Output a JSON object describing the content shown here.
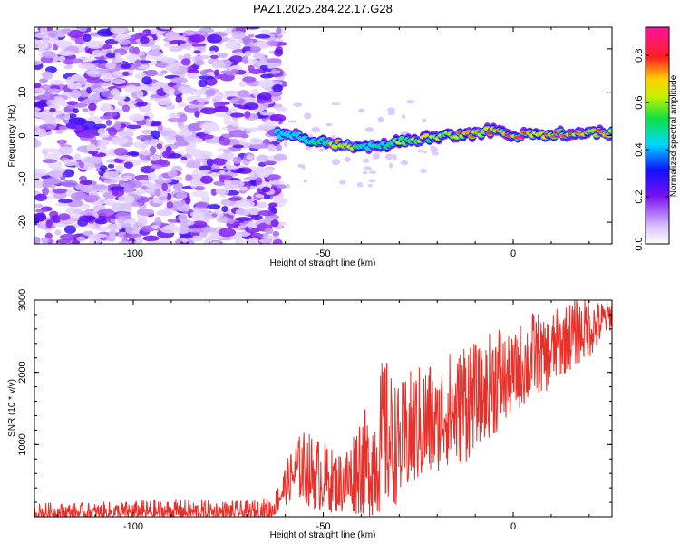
{
  "chart_data": [
    {
      "type": "heatmap",
      "title": "PAZ1.2025.284.22.17.G28",
      "xlabel": "Height of straight line (km)",
      "ylabel": "Frequency (Hz)",
      "xlim": [
        -126,
        26
      ],
      "ylim": [
        -25,
        25
      ],
      "xticks": [
        -100,
        -50,
        0
      ],
      "yticks": [
        -20,
        -10,
        0,
        10,
        20
      ],
      "colorbar": {
        "label": "Normalized spectral amplitude",
        "range": [
          0.0,
          0.92
        ],
        "ticks": [
          0.0,
          0.2,
          0.4,
          0.6,
          0.8
        ],
        "colormap": "white-purple-blue-cyan-green-yellow-red-magenta"
      },
      "noise_region": {
        "x_range": [
          -126,
          -61
        ],
        "amplitude_range": [
          0.05,
          0.3
        ]
      },
      "signal_ridge": {
        "x": [
          -62,
          -58,
          -54,
          -50,
          -46,
          -42,
          -38,
          -34,
          -30,
          -26,
          -22,
          -18,
          -14,
          -10,
          -6,
          -2,
          2,
          6,
          10,
          14,
          18,
          22,
          26
        ],
        "frequency": [
          0.5,
          0,
          -1,
          -1.5,
          -2,
          -2.5,
          -2.5,
          -2,
          -1.5,
          -1,
          -0.5,
          0,
          0,
          0.5,
          1,
          0.5,
          0,
          0,
          0,
          0.5,
          0.5,
          0.5,
          0.5
        ],
        "amplitude": [
          0.35,
          0.45,
          0.55,
          0.6,
          0.8,
          0.7,
          0.5,
          0.55,
          0.65,
          0.7,
          0.75,
          0.8,
          0.85,
          0.8,
          0.9,
          0.9,
          0.92,
          0.9,
          0.85,
          0.9,
          0.8,
          0.85,
          0.9
        ]
      }
    },
    {
      "type": "line",
      "xlabel": "Height of straight line (km)",
      "ylabel": "SNR (10 * v/v)",
      "xlim": [
        -126,
        26
      ],
      "ylim": [
        0,
        3000
      ],
      "xticks": [
        -100,
        -50,
        0
      ],
      "yticks": [
        1000,
        2000,
        3000
      ],
      "color": "#e8302a",
      "series": [
        {
          "name": "SNR",
          "x": [
            -126,
            -110,
            -90,
            -70,
            -63,
            -61,
            -59,
            -57,
            -55,
            -53,
            -51,
            -49,
            -46,
            -43,
            -40,
            -38,
            -36,
            -34,
            -32,
            -30,
            -28,
            -25,
            -22,
            -20,
            -18,
            -15,
            -12,
            -10,
            -8,
            -6,
            -4,
            -2,
            0,
            2,
            4,
            6,
            8,
            10,
            12,
            14,
            16,
            18,
            20,
            22,
            24,
            26
          ],
          "min": [
            0,
            0,
            0,
            0,
            0,
            100,
            200,
            250,
            200,
            100,
            80,
            60,
            50,
            30,
            20,
            0,
            0,
            80,
            120,
            200,
            300,
            450,
            500,
            600,
            700,
            700,
            750,
            1000,
            1050,
            1100,
            1150,
            1300,
            1450,
            1500,
            1550,
            1700,
            1700,
            1800,
            1900,
            2000,
            2050,
            2150,
            2200,
            2300,
            2500,
            2600
          ],
          "max": [
            200,
            200,
            250,
            220,
            300,
            600,
            850,
            1100,
            1200,
            1150,
            1100,
            1000,
            900,
            1050,
            1600,
            1400,
            1800,
            2300,
            2000,
            1800,
            2000,
            2100,
            2200,
            1900,
            2400,
            2200,
            2700,
            2400,
            2300,
            2600,
            2800,
            2500,
            2500,
            2700,
            2800,
            2900,
            2700,
            2850,
            2900,
            2950,
            3050,
            3000,
            3100,
            3000,
            3000,
            3000
          ]
        }
      ]
    }
  ]
}
